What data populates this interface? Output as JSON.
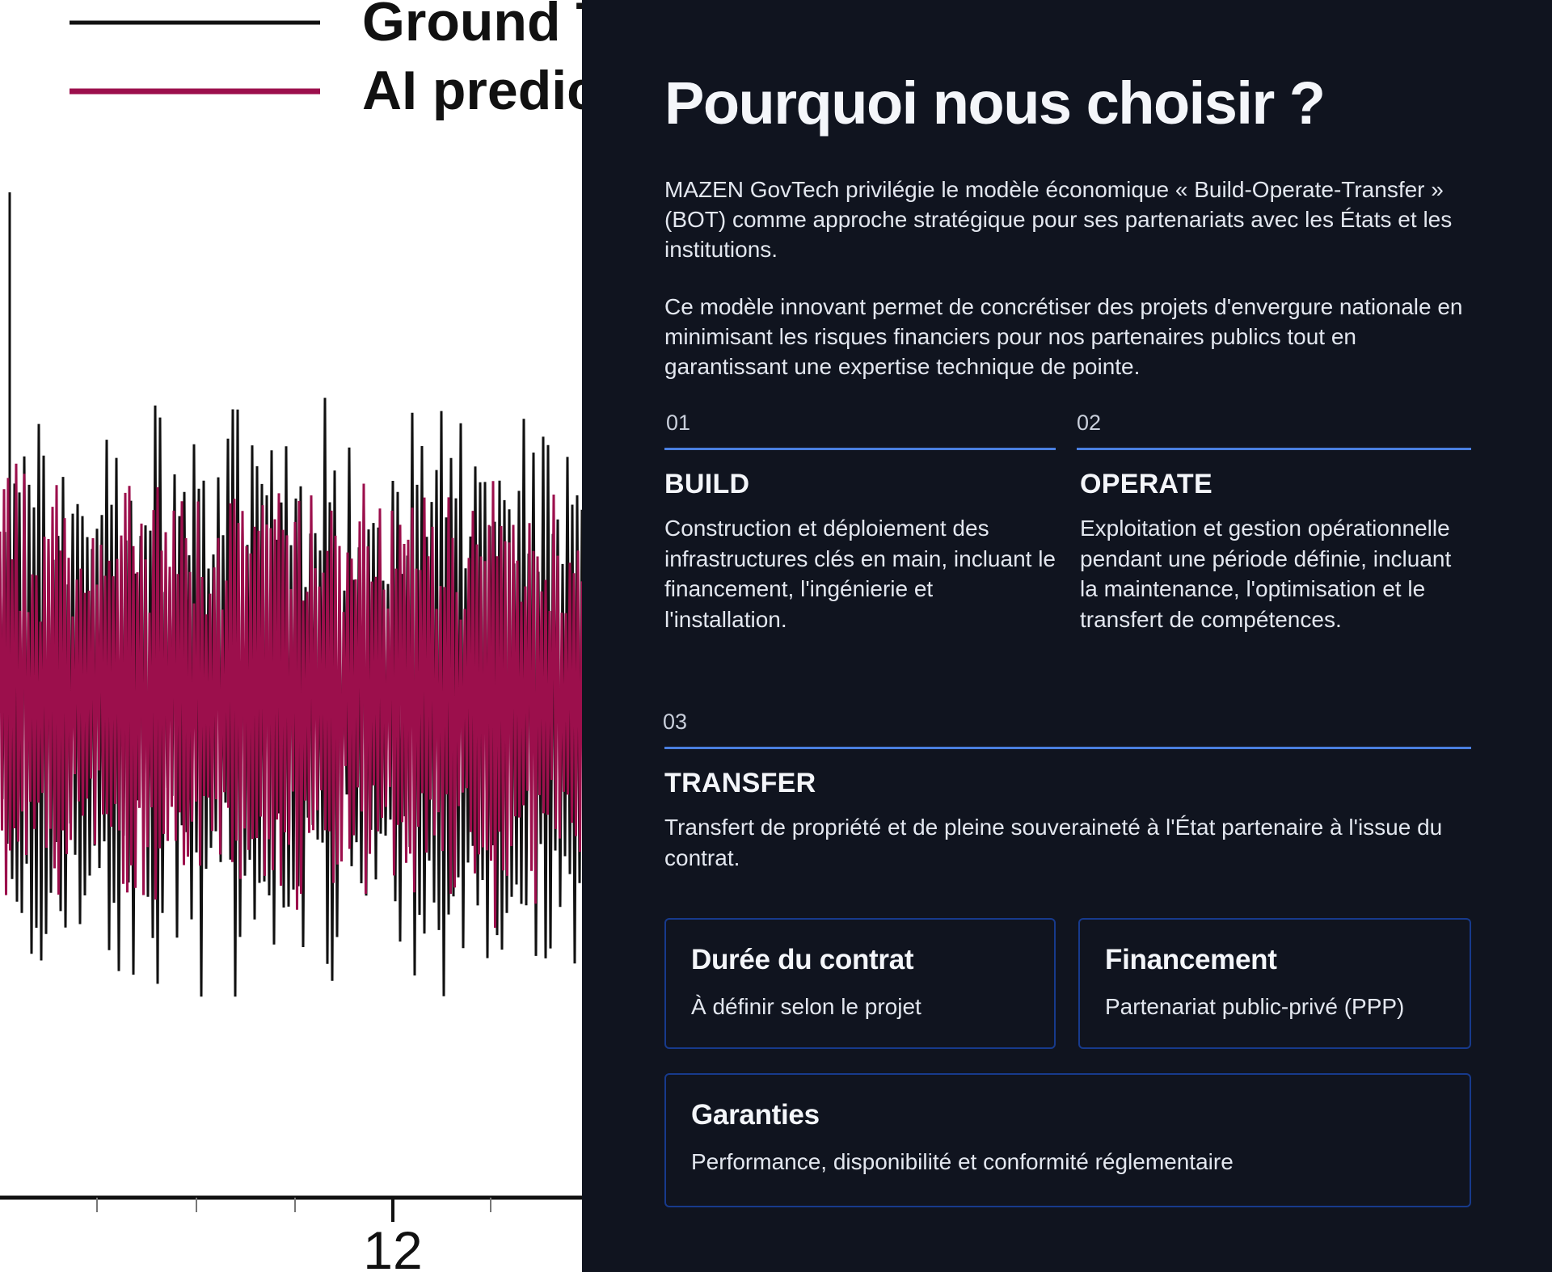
{
  "hero_image": {
    "legend": [
      {
        "label": "Ground T",
        "color": "#111111"
      },
      {
        "label": "AI predic",
        "color": "#9c0f4c"
      }
    ],
    "x_tick_label": "12"
  },
  "section": {
    "title": "Pourquoi nous choisir ?",
    "intro_paragraphs": [
      "MAZEN GovTech privilégie le modèle économique « Build-Operate-Transfer » (BOT) comme approche stratégique pour ses partenariats avec les États et les institutions.",
      "Ce modèle innovant permet de concrétiser des projets d'envergure nationale en minimisant les risques financiers pour nos partenaires publics tout en garantissant une expertise technique de pointe."
    ],
    "steps": [
      {
        "number": "01",
        "title": "BUILD",
        "description": "Construction et déploiement des infrastructures clés en main, incluant le financement, l'ingénierie et l'installation."
      },
      {
        "number": "02",
        "title": "OPERATE",
        "description": "Exploitation et gestion opérationnelle pendant une période définie, incluant la maintenance, l'optimisation et le transfert de compétences."
      },
      {
        "number": "03",
        "title": "TRANSFER",
        "description": "Transfert de propriété et de pleine souveraineté à l'État partenaire à l'issue du contrat."
      }
    ],
    "cards": [
      {
        "title": "Durée du contrat",
        "value": "À définir selon le projet"
      },
      {
        "title": "Financement",
        "value": "Partenariat public-privé (PPP)"
      },
      {
        "title": "Garanties",
        "value": "Performance, disponibilité et conformité réglementaire"
      }
    ]
  },
  "colors": {
    "background": "#10141f",
    "accent_rule": "#4a7fe0",
    "card_border": "#173a8c",
    "prediction_series": "#9c0f4c"
  }
}
